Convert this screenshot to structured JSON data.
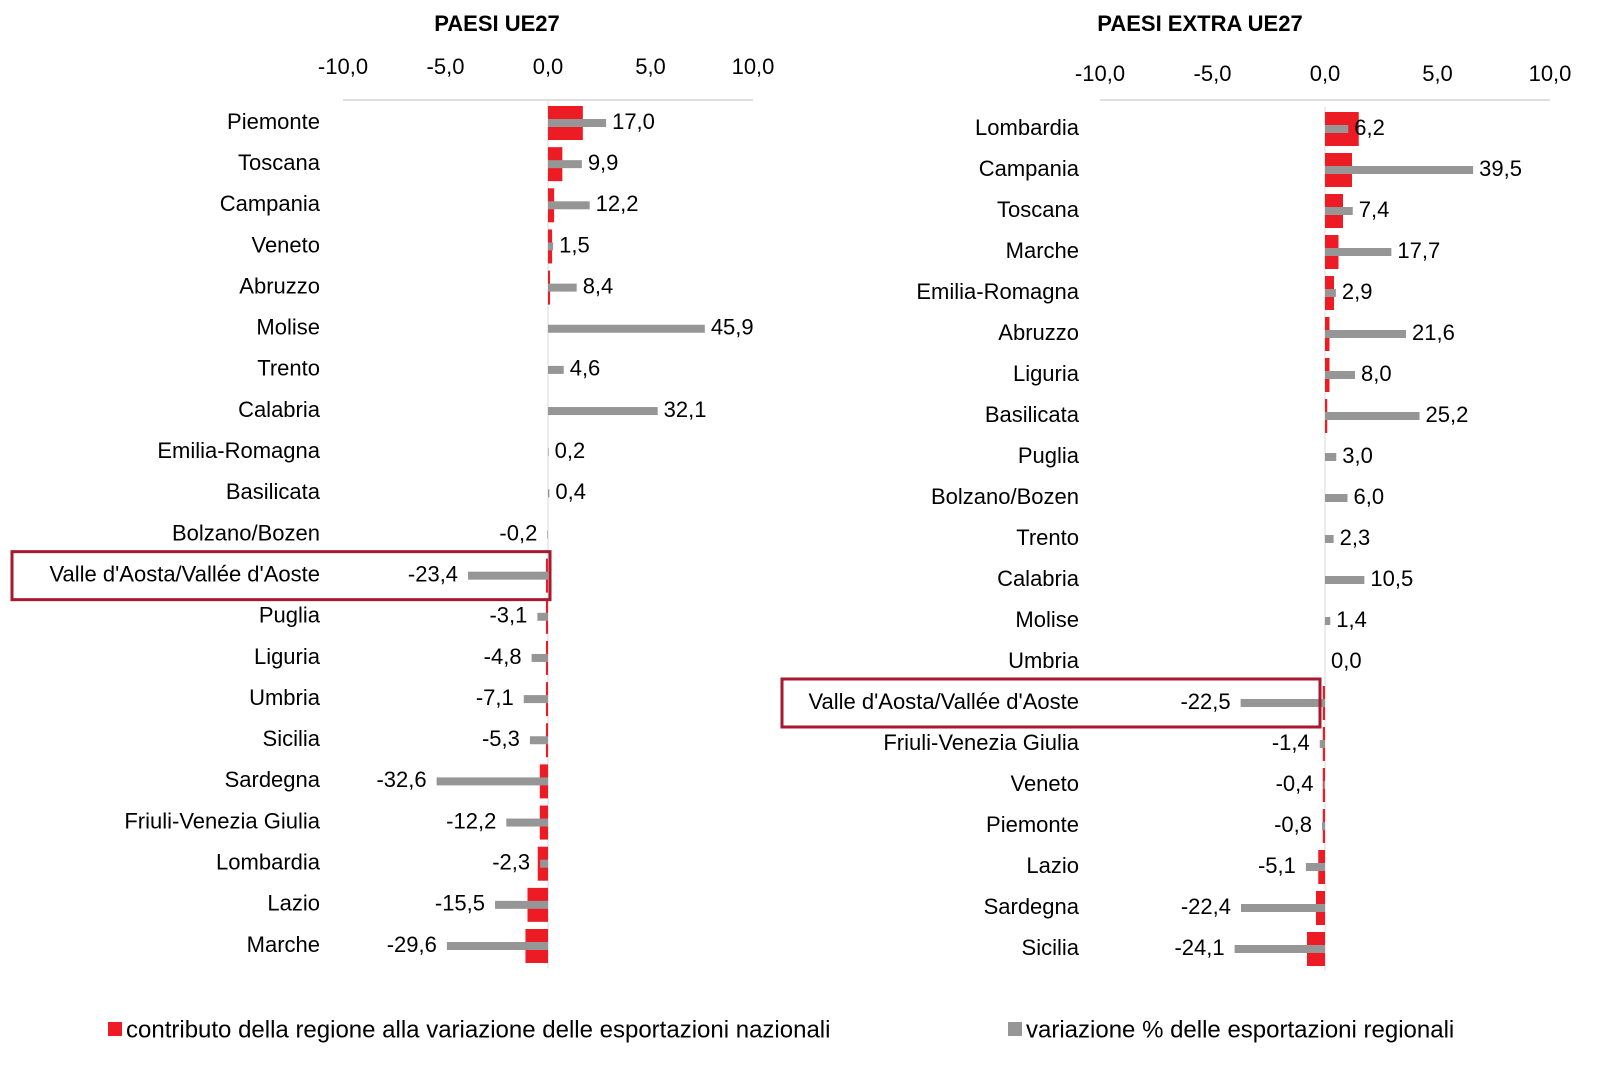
{
  "chart_data": [
    {
      "type": "bar",
      "horizontal": true,
      "title": "PAESI  UE27",
      "categories": [
        "Piemonte",
        "Toscana",
        "Campania",
        "Veneto",
        "Abruzzo",
        "Molise",
        "Trento",
        "Calabria",
        "Emilia-Romagna",
        "Basilicata",
        "Bolzano/Bozen",
        "Valle d'Aosta/Vallée d'Aoste",
        "Puglia",
        "Liguria",
        "Umbria",
        "Sicilia",
        "Sardegna",
        "Friuli-Venezia Giulia",
        "Lombardia",
        "Lazio",
        "Marche"
      ],
      "series": [
        {
          "name": "contributo della regione alla variazione delle esportazioni nazionali",
          "color": "#ed1c24",
          "values": [
            1.7,
            0.7,
            0.3,
            0.2,
            0.1,
            0.0,
            0.0,
            0.0,
            0.0,
            0.0,
            0.0,
            -0.1,
            -0.1,
            -0.1,
            -0.1,
            -0.1,
            -0.4,
            -0.4,
            -0.5,
            -1.0,
            -1.1
          ]
        },
        {
          "name": "variazione % delle esportazioni regionali",
          "color": "#969696",
          "axis": "x2",
          "values": [
            17.0,
            9.9,
            12.2,
            1.5,
            8.4,
            45.9,
            4.6,
            32.1,
            0.2,
            0.4,
            -0.2,
            -23.4,
            -3.1,
            -4.8,
            -7.1,
            -5.3,
            -32.6,
            -12.2,
            -2.3,
            -15.5,
            -29.6
          ],
          "value_labels": [
            "17,0",
            "9,9",
            "12,2",
            "1,5",
            "8,4",
            "45,9",
            "4,6",
            "32,1",
            "0,2",
            "0,4",
            "-0,2",
            "-23,4",
            "-3,1",
            "-4,8",
            "-7,1",
            "-5,3",
            "-32,6",
            "-12,2",
            "-2,3",
            "-15,5",
            "-29,6"
          ]
        }
      ],
      "xlim": [
        -10,
        10
      ],
      "xticks": [
        {
          "value": -10,
          "label": "-10,0"
        },
        {
          "value": -5,
          "label": "-5,0"
        },
        {
          "value": 0,
          "label": "0,0"
        },
        {
          "value": 5,
          "label": "5,0"
        },
        {
          "value": 10,
          "label": "10,0"
        }
      ],
      "x2lim": [
        -60,
        60
      ],
      "highlight_index": 11
    },
    {
      "type": "bar",
      "horizontal": true,
      "title": "PAESI  EXTRA UE27",
      "categories": [
        "Lombardia",
        "Campania",
        "Toscana",
        "Marche",
        "Emilia-Romagna",
        "Abruzzo",
        "Liguria",
        "Basilicata",
        "Puglia",
        "Bolzano/Bozen",
        "Trento",
        "Calabria",
        "Molise",
        "Umbria",
        "Valle d'Aosta/Vallée d'Aoste",
        "Friuli-Venezia Giulia",
        "Veneto",
        "Piemonte",
        "Lazio",
        "Sardegna",
        "Sicilia"
      ],
      "series": [
        {
          "name": "contributo della regione alla variazione delle esportazioni nazionali",
          "color": "#ed1c24",
          "values": [
            1.5,
            1.2,
            0.8,
            0.6,
            0.4,
            0.2,
            0.2,
            0.1,
            0.0,
            0.0,
            0.0,
            0.0,
            0.0,
            0.0,
            -0.1,
            -0.1,
            -0.1,
            -0.1,
            -0.3,
            -0.4,
            -0.8
          ]
        },
        {
          "name": "variazione % delle esportazioni regionali",
          "color": "#969696",
          "axis": "x2",
          "values": [
            6.2,
            39.5,
            7.4,
            17.7,
            2.9,
            21.6,
            8.0,
            25.2,
            3.0,
            6.0,
            2.3,
            10.5,
            1.4,
            0.0,
            -22.5,
            -1.4,
            -0.4,
            -0.8,
            -5.1,
            -22.4,
            -24.1
          ],
          "value_labels": [
            "6,2",
            "39,5",
            "7,4",
            "17,7",
            "2,9",
            "21,6",
            "8,0",
            "25,2",
            "3,0",
            "6,0",
            "2,3",
            "10,5",
            "1,4",
            "0,0",
            "-22,5",
            "-1,4",
            "-0,4",
            "-0,8",
            "-5,1",
            "-22,4",
            "-24,1"
          ]
        }
      ],
      "xlim": [
        -10,
        10
      ],
      "xticks": [
        {
          "value": -10,
          "label": "-10,0"
        },
        {
          "value": -5,
          "label": "-5,0"
        },
        {
          "value": 0,
          "label": "0,0"
        },
        {
          "value": 5,
          "label": "5,0"
        },
        {
          "value": 10,
          "label": "10,0"
        }
      ],
      "x2lim": [
        -60,
        60
      ],
      "highlight_index": 14
    }
  ]
}
